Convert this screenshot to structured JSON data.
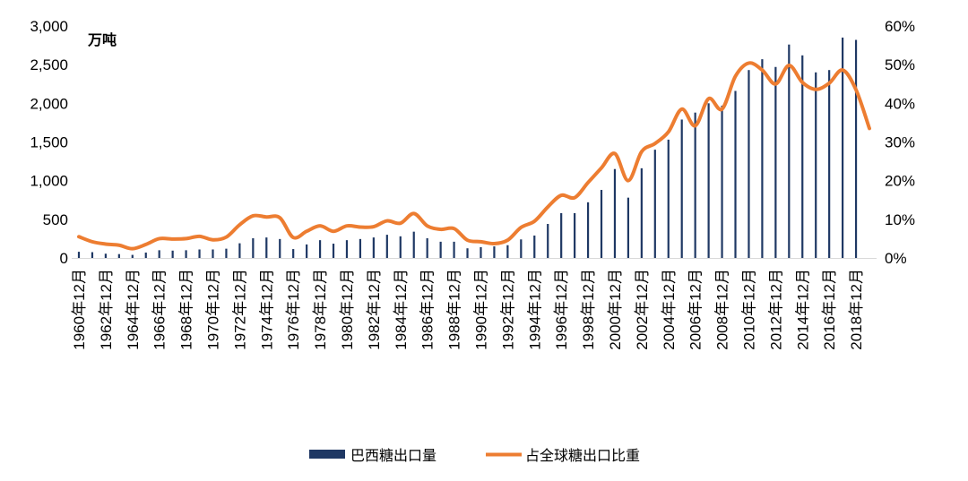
{
  "chart_data": {
    "type": "bar",
    "x": [
      1960,
      1961,
      1962,
      1963,
      1964,
      1965,
      1966,
      1967,
      1968,
      1969,
      1970,
      1971,
      1972,
      1973,
      1974,
      1975,
      1976,
      1977,
      1978,
      1979,
      1980,
      1981,
      1982,
      1983,
      1984,
      1985,
      1986,
      1987,
      1988,
      1989,
      1990,
      1991,
      1992,
      1993,
      1994,
      1995,
      1996,
      1997,
      1998,
      1999,
      2000,
      2001,
      2002,
      2003,
      2004,
      2005,
      2006,
      2007,
      2008,
      2009,
      2010,
      2011,
      2012,
      2013,
      2014,
      2015,
      2016,
      2017,
      2018,
      2019
    ],
    "x_tick_values": [
      1960,
      1962,
      1964,
      1966,
      1968,
      1970,
      1972,
      1974,
      1976,
      1978,
      1980,
      1982,
      1984,
      1986,
      1988,
      1990,
      1992,
      1994,
      1996,
      1998,
      2000,
      2002,
      2004,
      2006,
      2008,
      2010,
      2012,
      2014,
      2016,
      2018
    ],
    "x_tick_labels": [
      "1960年12月",
      "1962年12月",
      "1964年12月",
      "1966年12月",
      "1968年12月",
      "1970年12月",
      "1972年12月",
      "1974年12月",
      "1976年12月",
      "1978年12月",
      "1980年12月",
      "1982年12月",
      "1984年12月",
      "1986年12月",
      "1988年12月",
      "1990年12月",
      "1992年12月",
      "1994年12月",
      "1996年12月",
      "1998年12月",
      "2000年12月",
      "2002年12月",
      "2004年12月",
      "2006年12月",
      "2008年12月",
      "2010年12月",
      "2012年12月",
      "2014年12月",
      "2016年12月",
      "2018年12月"
    ],
    "y_left": {
      "label": "万吨",
      "min": 0,
      "max": 3000,
      "step": 500,
      "tick_labels": [
        "0",
        "500",
        "1,000",
        "1,500",
        "2,000",
        "2,500",
        "3,000"
      ]
    },
    "y_right": {
      "min": 0,
      "max": 60,
      "step": 10,
      "tick_labels": [
        "0%",
        "10%",
        "20%",
        "30%",
        "40%",
        "50%",
        "60%"
      ]
    },
    "series": [
      {
        "name": "巴西糖出口量",
        "type": "bar",
        "axis": "left",
        "color": "#1F3864",
        "values": [
          80,
          75,
          55,
          50,
          40,
          70,
          100,
          95,
          100,
          110,
          110,
          120,
          190,
          255,
          265,
          245,
          115,
          175,
          230,
          185,
          230,
          245,
          265,
          300,
          280,
          340,
          255,
          210,
          210,
          125,
          140,
          150,
          165,
          240,
          290,
          440,
          580,
          580,
          720,
          880,
          1150,
          780,
          1160,
          1400,
          1530,
          1790,
          1880,
          2000,
          1970,
          2160,
          2430,
          2570,
          2470,
          2760,
          2620,
          2400,
          2430,
          2850,
          2820,
          null
        ]
      },
      {
        "name": "占全球糖出口比重",
        "type": "line",
        "axis": "right",
        "color": "#ED7D31",
        "values": [
          5.5,
          4.2,
          3.6,
          3.3,
          2.4,
          3.5,
          5.0,
          4.9,
          5.0,
          5.6,
          4.7,
          5.4,
          8.6,
          10.9,
          10.6,
          10.4,
          5.3,
          6.9,
          8.3,
          6.9,
          8.3,
          8.0,
          8.1,
          9.6,
          9.0,
          11.5,
          8.3,
          7.4,
          7.6,
          4.6,
          4.2,
          3.7,
          4.6,
          7.9,
          9.5,
          13.2,
          16.2,
          15.6,
          19.5,
          23.3,
          27.0,
          20.0,
          27.5,
          29.6,
          32.6,
          38.5,
          34.2,
          41.2,
          38.5,
          47.0,
          50.4,
          48.6,
          45.0,
          49.8,
          45.4,
          43.6,
          45.2,
          48.6,
          43.5,
          33.5
        ]
      }
    ],
    "grid": false,
    "legend_position": "bottom"
  }
}
